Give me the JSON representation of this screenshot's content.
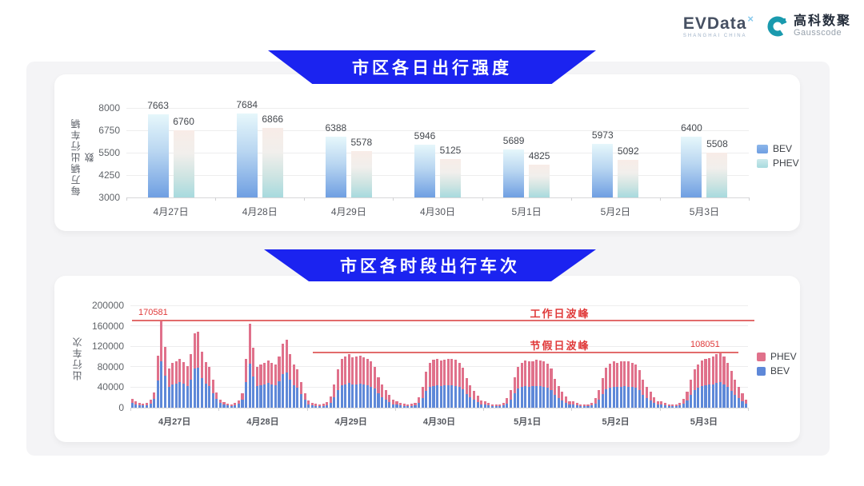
{
  "header": {
    "evdata": {
      "text": "EVData",
      "sup": "×",
      "subtext": "SHANGHAI CHINA"
    },
    "gausscode": {
      "cn": "高科数聚",
      "en": "Gausscode"
    }
  },
  "colors": {
    "banner_blue": "#1b23f0",
    "bev_bar_top": "#e6f7fb",
    "bev_bar_bottom": "#6f9fe2",
    "phev_bar_top": "#f8ece7",
    "phev_bar_bottom": "#a7dade",
    "bev_stack": "#5e88d8",
    "phev_stack": "#e0718b",
    "annotation_red": "#e03a3a",
    "refline_red": "#e26c6c",
    "panel_gray": "#f4f4f6"
  },
  "chart_data": [
    {
      "type": "bar",
      "title": "市区各日出行强度",
      "ylabel": "每万辆出行车辆数",
      "categories": [
        "4月27日",
        "4月28日",
        "4月29日",
        "4月30日",
        "5月1日",
        "5月2日",
        "5月3日"
      ],
      "series": [
        {
          "name": "BEV",
          "values": [
            7663,
            7684,
            6388,
            5946,
            5689,
            5973,
            6400
          ]
        },
        {
          "name": "PHEV",
          "values": [
            6760,
            6866,
            5578,
            5125,
            4825,
            5092,
            5508
          ]
        }
      ],
      "ylim": [
        3000,
        8000
      ],
      "y_ticks": [
        3000,
        4250,
        5500,
        6750,
        8000
      ],
      "grid": true,
      "legend_position": "right"
    },
    {
      "type": "bar",
      "stacked": true,
      "title": "市区各时段出行车次",
      "ylabel": "出行车次",
      "ylim": [
        0,
        200000
      ],
      "y_ticks": [
        0,
        40000,
        80000,
        120000,
        160000,
        200000
      ],
      "grid": true,
      "legend": [
        "PHEV",
        "BEV"
      ],
      "legend_position": "right",
      "annotations": {
        "workday_line": {
          "value": 170581,
          "value_label": "170581",
          "label": "工作日波峰"
        },
        "holiday_line": {
          "value": 108051,
          "value_label": "108051",
          "label": "节假日波峰"
        }
      },
      "days": [
        {
          "label": "4月27日",
          "bev": [
            9900,
            6600,
            4950,
            4400,
            4950,
            8250,
            16500,
            52500,
            90581,
            61900,
            40000,
            45800,
            46800,
            49400,
            46300,
            42600,
            54600,
            75900,
            77500,
            57200,
            46300,
            41600,
            28600,
            16500
          ],
          "phev": [
            8100,
            5400,
            4050,
            3600,
            4050,
            6750,
            13500,
            48500,
            80000,
            57100,
            37000,
            42200,
            43200,
            45600,
            42700,
            39400,
            50400,
            70100,
            71500,
            52800,
            42700,
            38400,
            26400,
            13500
          ]
        },
        {
          "label": "4月28日",
          "bev": [
            8800,
            6050,
            4400,
            3850,
            4950,
            7700,
            15400,
            49400,
            85300,
            61400,
            41600,
            44200,
            45800,
            47800,
            45200,
            43700,
            52000,
            65000,
            69200,
            54600,
            44200,
            39000,
            26000,
            15400
          ],
          "phev": [
            7200,
            4950,
            3600,
            3150,
            4050,
            6300,
            12600,
            45600,
            78700,
            56600,
            38400,
            40800,
            42200,
            44200,
            41800,
            40300,
            48000,
            60000,
            63800,
            50400,
            40800,
            36000,
            24000,
            12600
          ]
        },
        {
          "label": "4月29日",
          "bev": [
            6440,
            4600,
            3680,
            3220,
            3680,
            5060,
            10120,
            20700,
            34500,
            43700,
            46000,
            48300,
            45100,
            46000,
            46900,
            45100,
            43700,
            41400,
            36800,
            27600,
            20700,
            16100,
            11500,
            6900
          ],
          "phev": [
            7560,
            5400,
            4320,
            3780,
            4320,
            5940,
            11880,
            24300,
            40500,
            51300,
            54000,
            56700,
            52900,
            54000,
            55100,
            52900,
            51300,
            48600,
            43200,
            32400,
            24300,
            18900,
            13500,
            8100
          ]
        },
        {
          "label": "4月30日",
          "bev": [
            5980,
            4600,
            3680,
            3220,
            3680,
            4600,
            9200,
            18400,
            32200,
            40480,
            42780,
            43700,
            42320,
            43240,
            44160,
            43700,
            42780,
            40480,
            35880,
            26680,
            19780,
            15180,
            10580,
            6440
          ],
          "phev": [
            7020,
            5400,
            4320,
            3780,
            4320,
            5400,
            10800,
            21600,
            37800,
            47520,
            50220,
            51300,
            49680,
            50760,
            51840,
            51300,
            50220,
            47520,
            42120,
            31320,
            23220,
            17820,
            12420,
            7560
          ]
        },
        {
          "label": "5月1日",
          "bev": [
            5520,
            4140,
            3220,
            2760,
            3220,
            4140,
            8280,
            16100,
            27600,
            36800,
            40480,
            42320,
            41400,
            41860,
            42780,
            42320,
            41400,
            39560,
            34960,
            25760,
            19320,
            14720,
            10120,
            5980
          ],
          "phev": [
            6480,
            4860,
            3780,
            3240,
            3780,
            4860,
            9720,
            18900,
            32400,
            43200,
            47520,
            49680,
            48600,
            49140,
            50220,
            49680,
            48600,
            46440,
            41040,
            30240,
            22680,
            17280,
            11880,
            7020
          ]
        },
        {
          "label": "5月2日",
          "bev": [
            5520,
            4140,
            3220,
            2760,
            3220,
            4140,
            8280,
            15640,
            26680,
            35880,
            39560,
            41400,
            40480,
            41400,
            41860,
            41400,
            40480,
            38640,
            34040,
            25300,
            18860,
            14260,
            9660,
            5980
          ],
          "phev": [
            6480,
            4860,
            3780,
            3240,
            3780,
            4860,
            9720,
            18360,
            31320,
            42120,
            46440,
            48600,
            47520,
            48600,
            49140,
            48600,
            47520,
            45360,
            39960,
            29700,
            22140,
            16740,
            11340,
            7020
          ]
        },
        {
          "label": "5月3日",
          "bev": [
            5520,
            4140,
            3220,
            2760,
            3220,
            4140,
            7820,
            14720,
            25300,
            34500,
            39100,
            42320,
            43700,
            44620,
            46000,
            47840,
            49700,
            46000,
            40480,
            33120,
            25300,
            18400,
            12880,
            7360
          ],
          "phev": [
            6480,
            4860,
            3780,
            3240,
            3780,
            4860,
            9180,
            17280,
            29700,
            40500,
            45900,
            49680,
            51300,
            52380,
            54000,
            56160,
            58351,
            54000,
            47520,
            38880,
            29700,
            21600,
            15120,
            8640
          ]
        }
      ]
    }
  ]
}
